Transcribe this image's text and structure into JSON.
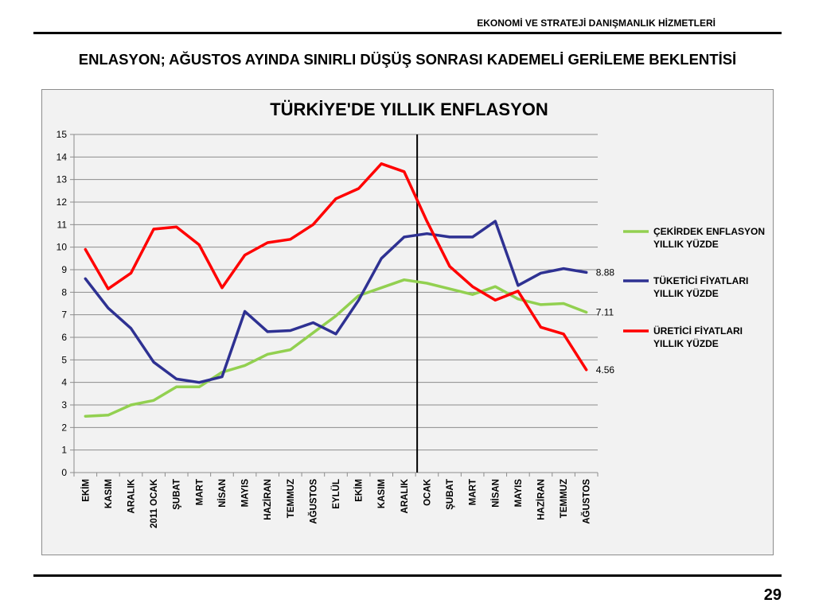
{
  "header": {
    "company": "EKONOMİ VE STRATEJİ DANIŞMANLIK HİZMETLERİ"
  },
  "slide": {
    "title": "ENLASYON;  AĞUSTOS AYINDA SINIRLI DÜŞÜŞ SONRASI KADEMELİ  GERİLEME BEKLENTİSİ",
    "page_number": "29"
  },
  "chart_data": {
    "type": "line",
    "title": "TÜRKİYE'DE YILLIK ENFLASYON",
    "xlabel": "",
    "ylabel": "",
    "ylim": [
      0,
      15
    ],
    "yticks": [
      0,
      1,
      2,
      3,
      4,
      5,
      6,
      7,
      8,
      9,
      10,
      11,
      12,
      13,
      14,
      15
    ],
    "grid": true,
    "legend_position": "right",
    "categories": [
      "EKİM",
      "KASIM",
      "ARALIK",
      "2011 OCAK",
      "ŞUBAT",
      "MART",
      "NİSAN",
      "MAYIS",
      "HAZİRAN",
      "TEMMUZ",
      "AĞUSTOS",
      "EYLÜL",
      "EKİM",
      "KASIM",
      "ARALIK",
      "OCAK",
      "ŞUBAT",
      "MART",
      "NİSAN",
      "MAYIS",
      "HAZİRAN",
      "TEMMUZ",
      "AĞUSTOS"
    ],
    "vertical_marker_category": "OCAK",
    "series": [
      {
        "name": "ÇEKİRDEK ENFLASYON YILLIK YÜZDE",
        "color": "#92d050",
        "values": [
          2.5,
          2.55,
          3.0,
          3.2,
          3.8,
          3.8,
          4.45,
          4.75,
          5.25,
          5.45,
          6.2,
          6.95,
          7.85,
          8.2,
          8.55,
          8.4,
          8.15,
          7.9,
          8.25,
          7.7,
          7.45,
          7.5,
          7.11
        ],
        "end_label": "7.11"
      },
      {
        "name": "TÜKETİCİ FİYATLARI YILLIK YÜZDE",
        "color": "#2e3192",
        "values": [
          8.6,
          7.3,
          6.4,
          4.9,
          4.15,
          4.0,
          4.25,
          7.15,
          6.25,
          6.3,
          6.65,
          6.15,
          7.65,
          9.5,
          10.45,
          10.6,
          10.45,
          10.45,
          11.15,
          8.3,
          8.85,
          9.05,
          8.88
        ],
        "end_label": "8.88"
      },
      {
        "name": "ÜRETİCİ FİYATLARI YILLIK YÜZDE",
        "color": "#ff0000",
        "values": [
          9.9,
          8.15,
          8.85,
          10.8,
          10.9,
          10.1,
          8.2,
          9.65,
          10.2,
          10.35,
          11.0,
          12.15,
          12.6,
          13.7,
          13.35,
          11.15,
          9.15,
          8.25,
          7.65,
          8.05,
          6.45,
          6.15,
          4.56
        ],
        "end_label": "4.56"
      }
    ]
  }
}
